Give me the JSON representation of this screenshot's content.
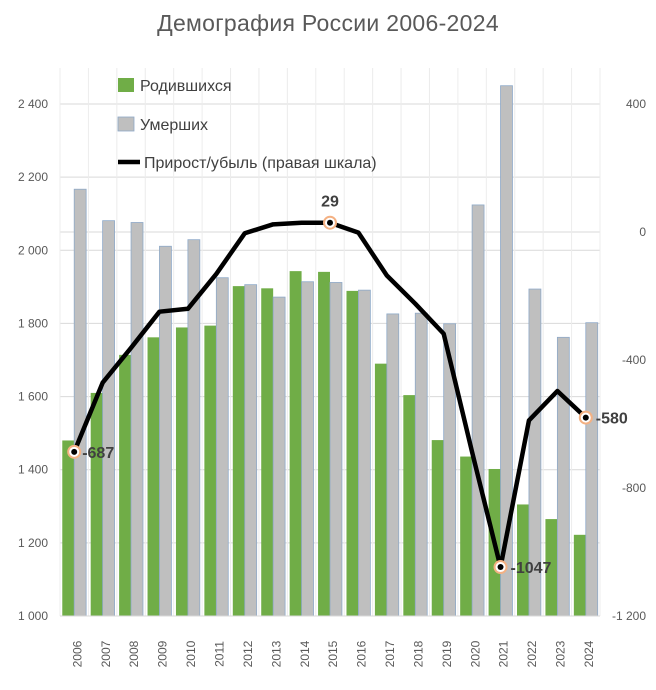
{
  "chart_data": {
    "type": "bar",
    "title": "Демография России 2006-2024",
    "categories": [
      "2006",
      "2007",
      "2008",
      "2009",
      "2010",
      "2011",
      "2012",
      "2013",
      "2014",
      "2015",
      "2016",
      "2017",
      "2018",
      "2019",
      "2020",
      "2021",
      "2022",
      "2023",
      "2024"
    ],
    "series": [
      {
        "name": "Родившихся",
        "type": "bar",
        "axis": "left",
        "color": "#70ad47",
        "values": [
          1480,
          1610,
          1714,
          1762,
          1789,
          1794,
          1902,
          1896,
          1943,
          1941,
          1889,
          1690,
          1604,
          1481,
          1436,
          1402,
          1305,
          1265,
          1222
        ]
      },
      {
        "name": "Умерших",
        "type": "bar",
        "axis": "left",
        "color": "#bfbfbf",
        "values": [
          2167,
          2081,
          2076,
          2011,
          2029,
          1925,
          1906,
          1872,
          1914,
          1912,
          1891,
          1826,
          1828,
          1799,
          2124,
          2450,
          1894,
          1762,
          1802
        ]
      },
      {
        "name": "Прирост/убыль (правая шкала)",
        "type": "line",
        "axis": "right",
        "color": "#000000",
        "values": [
          -687,
          -471,
          -362,
          -249,
          -240,
          -131,
          -4,
          24,
          29,
          29,
          -2,
          -136,
          -224,
          -318,
          -688,
          -1047,
          -589,
          -497,
          -580
        ]
      }
    ],
    "annotations": [
      {
        "index": 0,
        "label": "-687"
      },
      {
        "index": 9,
        "label": "29"
      },
      {
        "index": 15,
        "label": "-1047"
      },
      {
        "index": 18,
        "label": "-580"
      }
    ],
    "y_left": {
      "min": 1000,
      "max": 2400,
      "ticks": [
        1000,
        1200,
        1400,
        1600,
        1800,
        2000,
        2200,
        2400
      ],
      "tick_labels": [
        "1 000",
        "1 200",
        "1 400",
        "1 600",
        "1 800",
        "2 000",
        "2 200",
        "2 400"
      ]
    },
    "y_right": {
      "min": -1200,
      "max": 400,
      "ticks": [
        -1200,
        -800,
        -400,
        0,
        400
      ],
      "tick_labels": [
        "-1 200",
        "-800",
        "-400",
        "0",
        "400"
      ]
    },
    "grid": "horizontal",
    "legend_position": "top-left",
    "colors": {
      "births": "#70ad47",
      "deaths": "#bfbfbf",
      "deaths_border": "#8ea9c8",
      "net": "#000000",
      "marker_ring": "#f4b183"
    }
  }
}
